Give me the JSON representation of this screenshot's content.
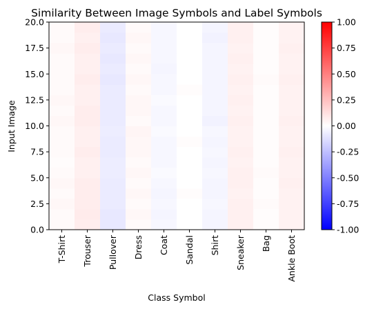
{
  "chart_data": {
    "type": "heatmap",
    "title": "Similarity Between Image Symbols and Label Symbols",
    "xlabel": "Class Symbol",
    "ylabel": "Input Image",
    "categories": [
      "T-Shirt",
      "Trouser",
      "Pullover",
      "Dress",
      "Coat",
      "Sandal",
      "Shirt",
      "Sneaker",
      "Bag",
      "Ankle Boot"
    ],
    "ylim": [
      0,
      20
    ],
    "yticks": [
      "0.0",
      "2.5",
      "5.0",
      "7.5",
      "10.0",
      "12.5",
      "15.0",
      "17.5",
      "20.0"
    ],
    "colorbar": {
      "colormap": "bwr",
      "range": [
        -1,
        1
      ],
      "ticks": [
        "-1.00",
        "-0.75",
        "-0.50",
        "-0.25",
        "0.00",
        "0.25",
        "0.50",
        "0.75",
        "1.00"
      ],
      "colors": {
        "low": "#0000ff",
        "mid": "#ffffff",
        "high": "#ff0000"
      }
    },
    "rows_bottom_to_top": [
      [
        0.02,
        0.07,
        -0.09,
        0.02,
        -0.03,
        0.0,
        -0.04,
        0.06,
        0.01,
        0.05
      ],
      [
        0.02,
        0.08,
        -0.09,
        0.03,
        -0.04,
        0.0,
        -0.04,
        0.06,
        0.01,
        0.05
      ],
      [
        0.03,
        0.07,
        -0.08,
        0.02,
        -0.03,
        0.0,
        -0.03,
        0.06,
        0.02,
        0.05
      ],
      [
        0.02,
        0.07,
        -0.08,
        0.03,
        -0.04,
        0.01,
        -0.04,
        0.05,
        0.01,
        0.05
      ],
      [
        0.03,
        0.07,
        -0.08,
        0.02,
        -0.03,
        0.0,
        -0.04,
        0.06,
        0.01,
        0.06
      ],
      [
        0.02,
        0.06,
        -0.07,
        0.03,
        -0.02,
        0.0,
        -0.03,
        0.06,
        0.02,
        0.05
      ],
      [
        0.01,
        0.06,
        -0.07,
        0.02,
        -0.03,
        0.0,
        -0.04,
        0.05,
        0.01,
        0.05
      ],
      [
        0.02,
        0.07,
        -0.08,
        0.03,
        -0.03,
        0.0,
        -0.03,
        0.06,
        0.01,
        0.06
      ],
      [
        0.02,
        0.06,
        -0.08,
        0.03,
        -0.03,
        0.01,
        -0.04,
        0.05,
        0.01,
        0.05
      ],
      [
        0.02,
        0.06,
        -0.07,
        0.04,
        -0.02,
        0.0,
        -0.03,
        0.05,
        0.01,
        0.05
      ],
      [
        0.03,
        0.07,
        -0.08,
        0.02,
        -0.03,
        0.0,
        -0.05,
        0.06,
        0.01,
        0.06
      ],
      [
        0.02,
        0.07,
        -0.08,
        0.03,
        -0.03,
        0.0,
        -0.04,
        0.05,
        0.01,
        0.05
      ],
      [
        0.03,
        0.06,
        -0.08,
        0.03,
        -0.02,
        0.0,
        -0.04,
        0.06,
        0.01,
        0.05
      ],
      [
        0.02,
        0.06,
        -0.08,
        0.02,
        -0.03,
        0.01,
        -0.04,
        0.05,
        0.01,
        0.05
      ],
      [
        0.02,
        0.07,
        -0.09,
        0.03,
        -0.03,
        0.0,
        -0.04,
        0.06,
        0.02,
        0.06
      ],
      [
        0.02,
        0.06,
        -0.08,
        0.02,
        -0.04,
        0.0,
        -0.04,
        0.05,
        0.01,
        0.05
      ],
      [
        0.02,
        0.06,
        -0.09,
        0.03,
        -0.03,
        0.0,
        -0.04,
        0.06,
        0.01,
        0.05
      ],
      [
        0.03,
        0.07,
        -0.08,
        0.02,
        -0.03,
        0.0,
        -0.04,
        0.05,
        0.01,
        0.06
      ],
      [
        0.02,
        0.06,
        -0.09,
        0.03,
        -0.03,
        0.0,
        -0.05,
        0.06,
        0.01,
        0.05
      ],
      [
        0.02,
        0.07,
        -0.08,
        0.02,
        -0.03,
        0.0,
        -0.04,
        0.06,
        0.01,
        0.05
      ]
    ]
  }
}
